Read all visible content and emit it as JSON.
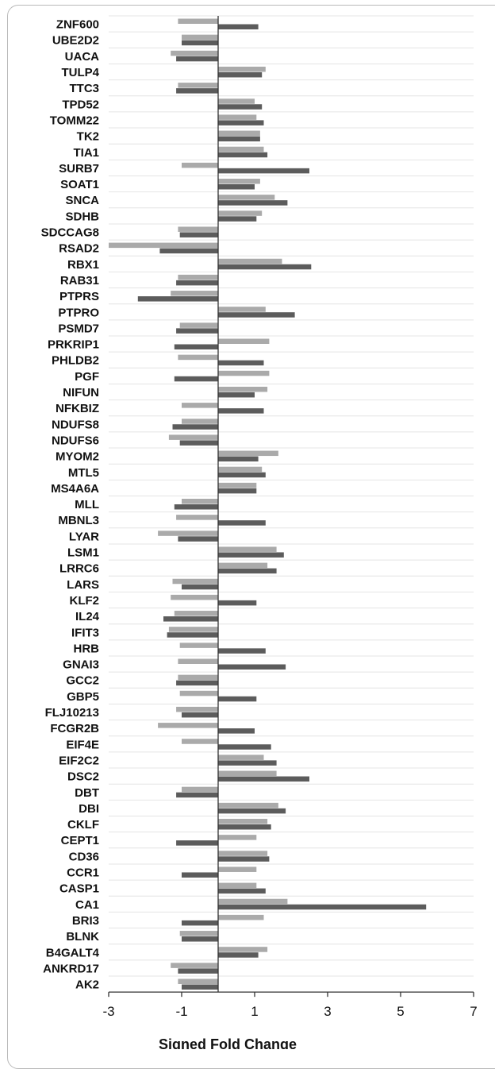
{
  "colors": {
    "series1": "#aaaaaa",
    "series2": "#5c5c5c",
    "grid": "#e4e4e4",
    "axis": "#333333",
    "frame": "#b9b9b9"
  },
  "chart_data": {
    "type": "bar",
    "orientation": "horizontal",
    "categories": [
      "ZNF600",
      "UBE2D2",
      "UACA",
      "TULP4",
      "TTC3",
      "TPD52",
      "TOMM22",
      "TK2",
      "TIA1",
      "SURB7",
      "SOAT1",
      "SNCA",
      "SDHB",
      "SDCCAG8",
      "RSAD2",
      "RBX1",
      "RAB31",
      "PTPRS",
      "PTPRO",
      "PSMD7",
      "PRKRIP1",
      "PHLDB2",
      "PGF",
      "NIFUN",
      "NFKBIZ",
      "NDUFS8",
      "NDUFS6",
      "MYOM2",
      "MTL5",
      "MS4A6A",
      "MLL",
      "MBNL3",
      "LYAR",
      "LSM1",
      "LRRC6",
      "LARS",
      "KLF2",
      "IL24",
      "IFIT3",
      "HRB",
      "GNAI3",
      "GCC2",
      "GBP5",
      "FLJ10213",
      "FCGR2B",
      "EIF4E",
      "EIF2C2",
      "DSC2",
      "DBT",
      "DBI",
      "CKLF",
      "CEPT1",
      "CD36",
      "CCR1",
      "CASP1",
      "CA1",
      "BRI3",
      "BLNK",
      "B4GALT4",
      "ANKRD17",
      "AK2"
    ],
    "series": [
      {
        "values": [
          -1.1,
          -1.0,
          -1.3,
          1.3,
          -1.1,
          1.0,
          1.05,
          1.15,
          1.25,
          -1.0,
          1.15,
          1.55,
          1.2,
          -1.1,
          -3.0,
          1.75,
          -1.1,
          -1.3,
          1.3,
          -1.05,
          1.4,
          -1.1,
          1.4,
          1.35,
          -1.0,
          -1.0,
          -1.35,
          1.65,
          1.2,
          1.05,
          -1.0,
          -1.15,
          -1.65,
          1.6,
          1.35,
          -1.25,
          -1.3,
          -1.2,
          -1.35,
          -1.05,
          -1.1,
          -1.1,
          -1.05,
          -1.15,
          -1.65,
          -1.0,
          1.25,
          1.6,
          -1.0,
          1.65,
          1.35,
          1.05,
          1.35,
          1.05,
          1.05,
          1.9,
          1.25,
          -1.05,
          1.35,
          -1.3,
          -1.1
        ]
      },
      {
        "values": [
          1.1,
          -1.0,
          -1.15,
          1.2,
          -1.15,
          1.2,
          1.25,
          1.15,
          1.35,
          2.5,
          1.0,
          1.9,
          1.05,
          -1.05,
          -1.6,
          2.55,
          -1.15,
          -2.2,
          2.1,
          -1.15,
          -1.2,
          1.25,
          -1.2,
          1.0,
          1.25,
          -1.25,
          -1.05,
          1.1,
          1.3,
          1.05,
          -1.2,
          1.3,
          -1.1,
          1.8,
          1.6,
          -1.0,
          1.05,
          -1.5,
          -1.4,
          1.3,
          1.85,
          -1.15,
          1.05,
          -1.0,
          1.0,
          1.45,
          1.6,
          2.5,
          -1.15,
          1.85,
          1.45,
          -1.15,
          1.4,
          -1.0,
          1.3,
          5.7,
          -1.0,
          -1.0,
          1.1,
          -1.1,
          -1.0
        ]
      }
    ],
    "xlim": [
      -3,
      7
    ],
    "xticks": [
      "-3",
      "-1",
      "1",
      "3",
      "5",
      "7"
    ],
    "xlabel": "Signed Fold Change",
    "grid": true,
    "legend": "none"
  }
}
